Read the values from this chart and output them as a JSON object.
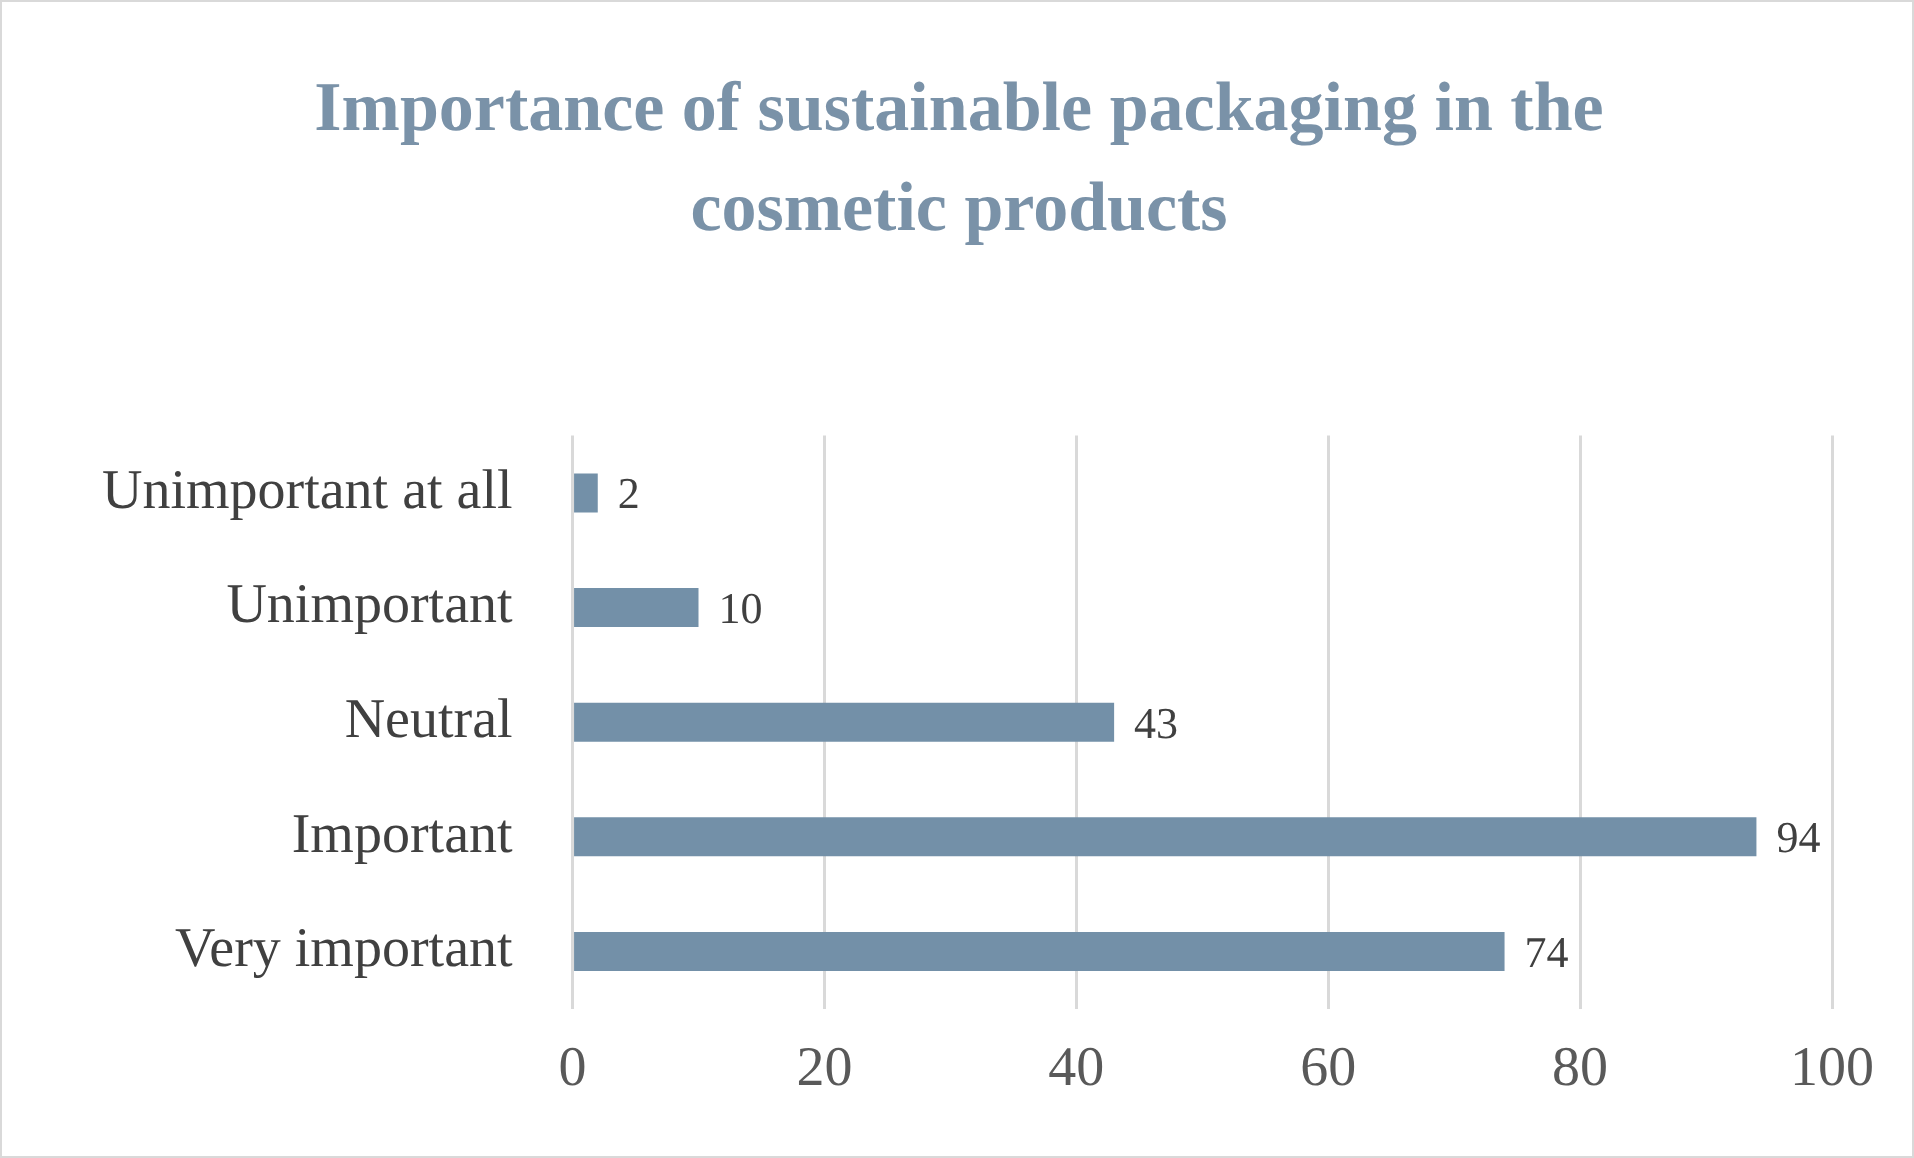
{
  "chart_data": {
    "type": "bar",
    "orientation": "horizontal",
    "title": "Importance of sustainable packaging in the cosmetic products",
    "categories": [
      "Unimportant at all",
      "Unimportant",
      "Neutral",
      "Important",
      "Very important"
    ],
    "values": [
      2,
      10,
      43,
      94,
      74
    ],
    "color": "#7390a8",
    "xlim": [
      0,
      100
    ],
    "xticks": [
      0,
      20,
      40,
      60,
      80,
      100
    ],
    "grid": "x",
    "data_labels": true
  }
}
